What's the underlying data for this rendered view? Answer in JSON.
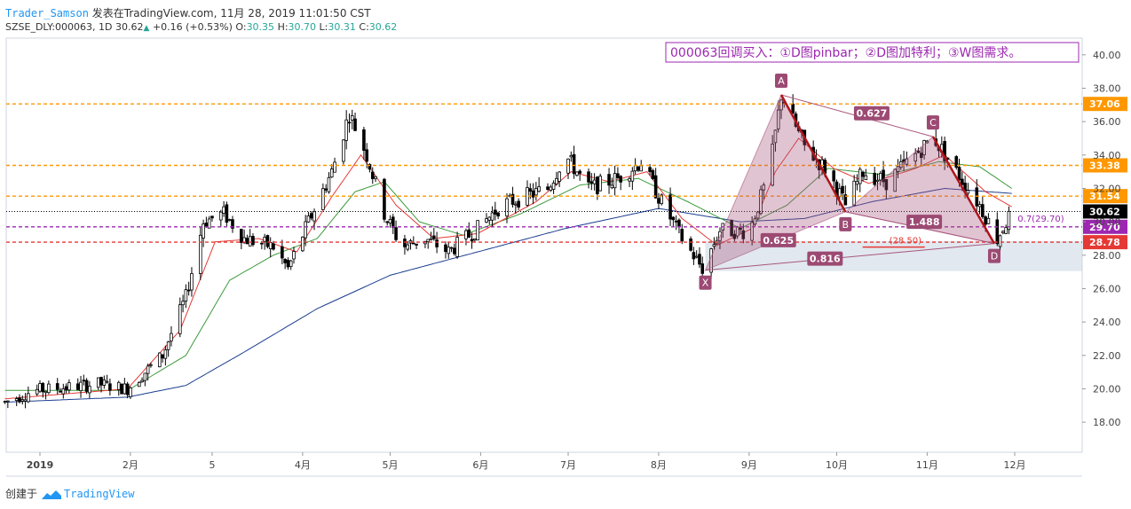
{
  "header": {
    "author": "Trader_Samson",
    "published": "发表在TradingView.com, 11月 28, 2019 11:01:50 CST",
    "symbol": "SZSE_DLY:000063, 1D",
    "last": "30.62",
    "change": "+0.16 (+0.53%)",
    "o_label": "O:",
    "o": "30.35",
    "h_label": "H:",
    "h": "30.70",
    "l_label": "L:",
    "l": "30.31",
    "c_label": "C:",
    "c": "30.62"
  },
  "footer": {
    "created": "创建于",
    "brand": "TradingView"
  },
  "chart_data": {
    "type": "candlestick",
    "title": "000063回调买入：①D图pinbar；②D图加特利；③W图需求。",
    "ylim": [
      16.2,
      41.0
    ],
    "y_ticks": [
      18,
      20,
      22,
      24,
      26,
      28,
      30,
      32,
      34,
      36,
      38,
      40
    ],
    "y_tick_labels": [
      "18.00",
      "20.00",
      "22.00",
      "24.00",
      "26.00",
      "28.00",
      "30.00",
      "32.00",
      "34.00",
      "36.00",
      "38.00",
      "40.00"
    ],
    "x_ticks": [
      {
        "label": "2019",
        "day": 0
      },
      {
        "label": "2月",
        "day": 31
      },
      {
        "label": "5",
        "day": 59
      },
      {
        "label": "4月",
        "day": 90
      },
      {
        "label": "5月",
        "day": 120
      },
      {
        "label": "6月",
        "day": 151
      },
      {
        "label": "7月",
        "day": 181
      },
      {
        "label": "8月",
        "day": 212
      },
      {
        "label": "9月",
        "day": 243
      },
      {
        "label": "10月",
        "day": 273
      },
      {
        "label": "11月",
        "day": 304
      },
      {
        "label": "12月",
        "day": 334
      }
    ],
    "price_path": [
      {
        "d": -12,
        "p": 19.2
      },
      {
        "d": -2,
        "p": 19.9
      },
      {
        "d": 10,
        "p": 20.1
      },
      {
        "d": 20,
        "p": 20.3
      },
      {
        "d": 30,
        "p": 20.0
      },
      {
        "d": 42,
        "p": 22.0
      },
      {
        "d": 50,
        "p": 25.5
      },
      {
        "d": 56,
        "p": 30.0
      },
      {
        "d": 63,
        "p": 30.5
      },
      {
        "d": 70,
        "p": 29.0
      },
      {
        "d": 80,
        "p": 28.5
      },
      {
        "d": 85,
        "p": 27.2
      },
      {
        "d": 92,
        "p": 30.0
      },
      {
        "d": 100,
        "p": 33.0
      },
      {
        "d": 106,
        "p": 36.5
      },
      {
        "d": 112,
        "p": 34.0
      },
      {
        "d": 118,
        "p": 30.5
      },
      {
        "d": 124,
        "p": 28.5
      },
      {
        "d": 132,
        "p": 29.0
      },
      {
        "d": 140,
        "p": 28.2
      },
      {
        "d": 150,
        "p": 29.6
      },
      {
        "d": 158,
        "p": 31.0
      },
      {
        "d": 166,
        "p": 31.5
      },
      {
        "d": 174,
        "p": 32.0
      },
      {
        "d": 180,
        "p": 34.0
      },
      {
        "d": 188,
        "p": 32.0
      },
      {
        "d": 198,
        "p": 32.6
      },
      {
        "d": 206,
        "p": 33.6
      },
      {
        "d": 212,
        "p": 31.5
      },
      {
        "d": 220,
        "p": 29.0
      },
      {
        "d": 227,
        "p": 27.2
      },
      {
        "d": 233,
        "p": 29.5
      },
      {
        "d": 243,
        "p": 29.4
      },
      {
        "d": 250,
        "p": 33.0
      },
      {
        "d": 254,
        "p": 37.6
      },
      {
        "d": 262,
        "p": 34.5
      },
      {
        "d": 270,
        "p": 33.0
      },
      {
        "d": 276,
        "p": 31.0
      },
      {
        "d": 282,
        "p": 33.0
      },
      {
        "d": 290,
        "p": 32.4
      },
      {
        "d": 300,
        "p": 34.0
      },
      {
        "d": 306,
        "p": 35.1
      },
      {
        "d": 314,
        "p": 33.0
      },
      {
        "d": 322,
        "p": 31.0
      },
      {
        "d": 328,
        "p": 29.0
      },
      {
        "d": 333,
        "p": 30.6
      }
    ],
    "ma_fast": [
      {
        "d": -12,
        "p": 19.4
      },
      {
        "d": 30,
        "p": 20.0
      },
      {
        "d": 48,
        "p": 23.5
      },
      {
        "d": 60,
        "p": 28.8
      },
      {
        "d": 75,
        "p": 29.0
      },
      {
        "d": 88,
        "p": 28.2
      },
      {
        "d": 100,
        "p": 31.5
      },
      {
        "d": 110,
        "p": 34.0
      },
      {
        "d": 122,
        "p": 31.0
      },
      {
        "d": 135,
        "p": 29.0
      },
      {
        "d": 150,
        "p": 29.3
      },
      {
        "d": 170,
        "p": 31.2
      },
      {
        "d": 182,
        "p": 33.0
      },
      {
        "d": 195,
        "p": 32.4
      },
      {
        "d": 208,
        "p": 33.0
      },
      {
        "d": 220,
        "p": 30.2
      },
      {
        "d": 232,
        "p": 28.6
      },
      {
        "d": 244,
        "p": 29.6
      },
      {
        "d": 252,
        "p": 33.0
      },
      {
        "d": 260,
        "p": 35.0
      },
      {
        "d": 272,
        "p": 33.2
      },
      {
        "d": 284,
        "p": 32.3
      },
      {
        "d": 300,
        "p": 33.2
      },
      {
        "d": 310,
        "p": 34.0
      },
      {
        "d": 324,
        "p": 31.8
      },
      {
        "d": 333,
        "p": 30.9
      }
    ],
    "ma_mid": [
      {
        "d": -12,
        "p": 19.9
      },
      {
        "d": 30,
        "p": 19.9
      },
      {
        "d": 50,
        "p": 22.0
      },
      {
        "d": 65,
        "p": 26.5
      },
      {
        "d": 80,
        "p": 28.0
      },
      {
        "d": 95,
        "p": 29.0
      },
      {
        "d": 108,
        "p": 31.8
      },
      {
        "d": 118,
        "p": 32.4
      },
      {
        "d": 130,
        "p": 30.0
      },
      {
        "d": 145,
        "p": 29.2
      },
      {
        "d": 165,
        "p": 30.5
      },
      {
        "d": 185,
        "p": 32.2
      },
      {
        "d": 205,
        "p": 32.6
      },
      {
        "d": 222,
        "p": 31.2
      },
      {
        "d": 240,
        "p": 29.6
      },
      {
        "d": 256,
        "p": 31.0
      },
      {
        "d": 270,
        "p": 33.2
      },
      {
        "d": 290,
        "p": 32.8
      },
      {
        "d": 308,
        "p": 33.6
      },
      {
        "d": 322,
        "p": 33.3
      },
      {
        "d": 333,
        "p": 32.0
      }
    ],
    "ma_slow": [
      {
        "d": -12,
        "p": 19.2
      },
      {
        "d": 30,
        "p": 19.5
      },
      {
        "d": 50,
        "p": 20.2
      },
      {
        "d": 70,
        "p": 22.2
      },
      {
        "d": 95,
        "p": 24.8
      },
      {
        "d": 120,
        "p": 26.8
      },
      {
        "d": 150,
        "p": 28.2
      },
      {
        "d": 180,
        "p": 29.6
      },
      {
        "d": 212,
        "p": 30.8
      },
      {
        "d": 240,
        "p": 30.0
      },
      {
        "d": 262,
        "p": 30.2
      },
      {
        "d": 285,
        "p": 31.2
      },
      {
        "d": 310,
        "p": 32.0
      },
      {
        "d": 333,
        "p": 31.7
      }
    ],
    "hlines": [
      {
        "price": 37.06,
        "label": "37.06",
        "color": "#ff9800",
        "style": "dashed"
      },
      {
        "price": 33.38,
        "label": "33.38",
        "color": "#ff9800",
        "style": "dashed"
      },
      {
        "price": 31.54,
        "label": "31.54",
        "color": "#ff9800",
        "style": "dashed"
      },
      {
        "price": 30.62,
        "label": "30.62",
        "color": "#000000",
        "style": "dotted"
      },
      {
        "price": 29.7,
        "label": "29.70",
        "color": "#9c27b0",
        "style": "dashed"
      },
      {
        "price": 28.78,
        "label": "28.78",
        "color": "#e53935",
        "style": "dashed"
      }
    ],
    "pattern_points": [
      {
        "name": "X",
        "d": 228,
        "p": 27.1,
        "label_pos": "below"
      },
      {
        "name": "A",
        "d": 254,
        "p": 37.6,
        "label_pos": "above"
      },
      {
        "name": "B",
        "d": 276,
        "p": 30.6,
        "label_pos": "below"
      },
      {
        "name": "C",
        "d": 306,
        "p": 35.1,
        "label_pos": "above"
      },
      {
        "name": "D",
        "d": 327,
        "p": 28.7,
        "label_pos": "below"
      }
    ],
    "ratios": [
      {
        "text": "0.627",
        "d": 285,
        "p": 36.5
      },
      {
        "text": "0.625",
        "d": 253,
        "p": 28.9
      },
      {
        "text": "1.488",
        "d": 303,
        "p": 30.0
      },
      {
        "text": "0.816",
        "d": 269,
        "p": 27.8
      }
    ],
    "target_zone": {
      "p_top": 28.85,
      "p_bottom": 27.05,
      "d_start": 228
    },
    "annotations": [
      {
        "text": "(28.50)",
        "d": 291,
        "p": 28.7,
        "color": "#e53935"
      },
      {
        "text": "0.7(29.70)",
        "d": 335,
        "p": 30.0,
        "color": "#9c27b0"
      }
    ],
    "legend": "none",
    "grid": false
  }
}
